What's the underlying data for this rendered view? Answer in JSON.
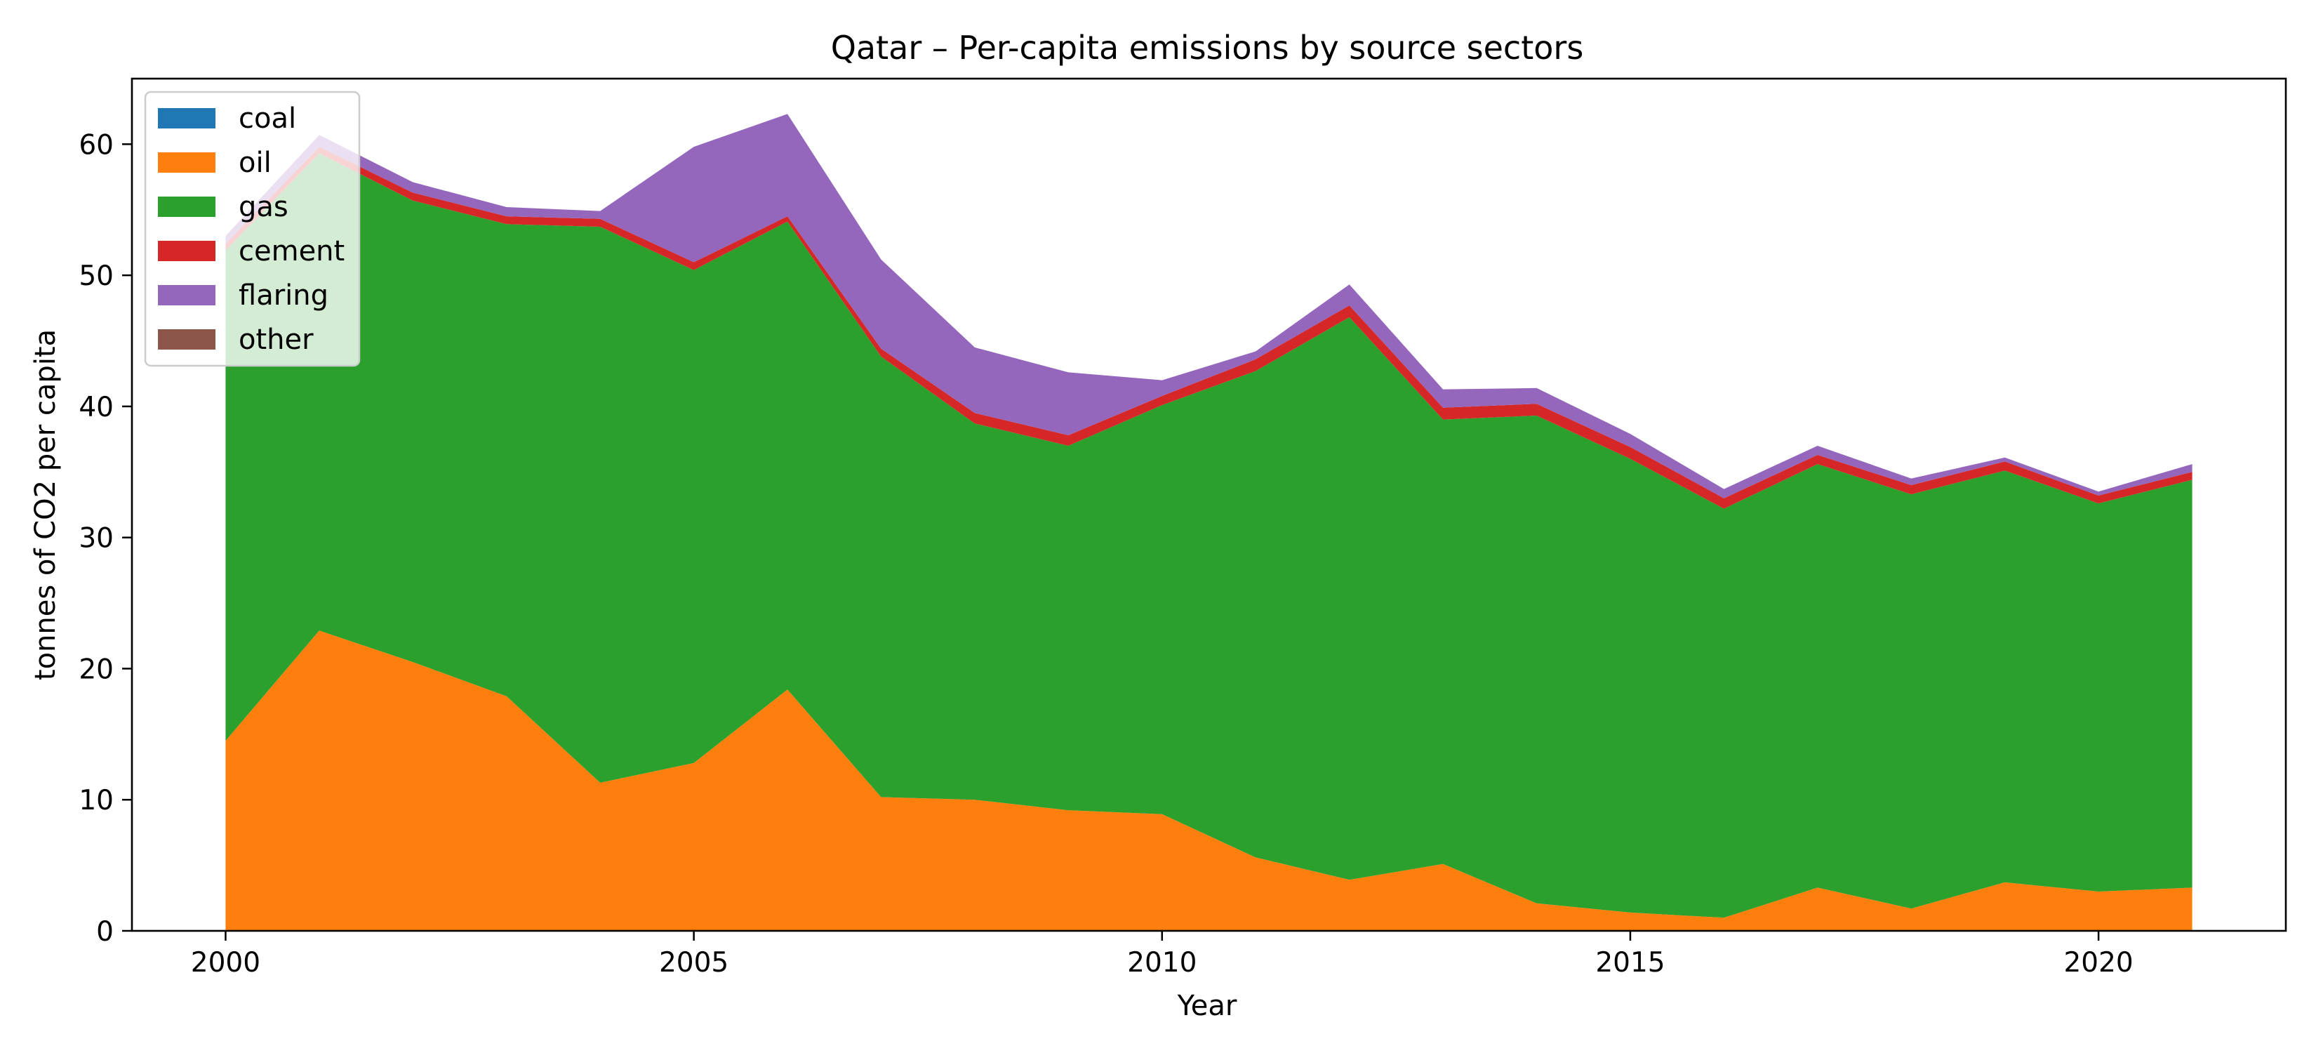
{
  "chart_data": {
    "type": "area",
    "stacked": true,
    "title": "Qatar – Per-capita emissions by source sectors",
    "xlabel": "Year",
    "ylabel": "tonnes of CO2 per capita",
    "xlim": [
      1999,
      2022
    ],
    "ylim": [
      0,
      65
    ],
    "xticks": [
      2000,
      2005,
      2010,
      2015,
      2020
    ],
    "yticks": [
      0,
      10,
      20,
      30,
      40,
      50,
      60
    ],
    "grid": false,
    "legend_position": "top-left",
    "x": [
      2000,
      2001,
      2002,
      2003,
      2004,
      2005,
      2006,
      2007,
      2008,
      2009,
      2010,
      2011,
      2012,
      2013,
      2014,
      2015,
      2016,
      2017,
      2018,
      2019,
      2020,
      2021
    ],
    "series": [
      {
        "name": "coal",
        "color": "#1f77b4",
        "values": [
          0,
          0,
          0,
          0,
          0,
          0,
          0,
          0,
          0,
          0,
          0,
          0,
          0,
          0,
          0,
          0,
          0,
          0,
          0,
          0,
          0,
          0
        ]
      },
      {
        "name": "oil",
        "color": "#ff7f0e",
        "values": [
          14.5,
          22.9,
          20.5,
          17.9,
          11.3,
          12.8,
          18.4,
          10.2,
          10.0,
          9.2,
          8.9,
          5.6,
          3.9,
          5.1,
          2.1,
          1.4,
          1.0,
          3.3,
          1.7,
          3.7,
          3.0,
          3.3
        ]
      },
      {
        "name": "gas",
        "color": "#2ca02c",
        "values": [
          37.4,
          36.4,
          35.2,
          36.0,
          42.4,
          37.6,
          35.7,
          33.6,
          28.7,
          27.8,
          31.2,
          37.1,
          42.9,
          33.9,
          37.2,
          34.6,
          31.2,
          32.3,
          31.6,
          31.4,
          29.6,
          31.1
        ]
      },
      {
        "name": "cement",
        "color": "#d62728",
        "values": [
          0.5,
          0.5,
          0.6,
          0.6,
          0.6,
          0.6,
          0.4,
          0.6,
          0.8,
          0.8,
          0.7,
          0.9,
          0.9,
          0.9,
          0.9,
          0.9,
          0.8,
          0.7,
          0.7,
          0.7,
          0.6,
          0.6
        ]
      },
      {
        "name": "flaring",
        "color": "#9467bd",
        "values": [
          0.6,
          0.9,
          0.8,
          0.7,
          0.6,
          8.8,
          7.8,
          6.8,
          5.0,
          4.8,
          1.2,
          0.6,
          1.6,
          1.4,
          1.2,
          1.0,
          0.7,
          0.7,
          0.5,
          0.3,
          0.3,
          0.6
        ]
      },
      {
        "name": "other",
        "color": "#8c564b",
        "values": [
          0,
          0,
          0,
          0,
          0,
          0,
          0,
          0,
          0,
          0,
          0,
          0,
          0,
          0,
          0,
          0,
          0,
          0,
          0,
          0,
          0,
          0
        ]
      }
    ]
  }
}
